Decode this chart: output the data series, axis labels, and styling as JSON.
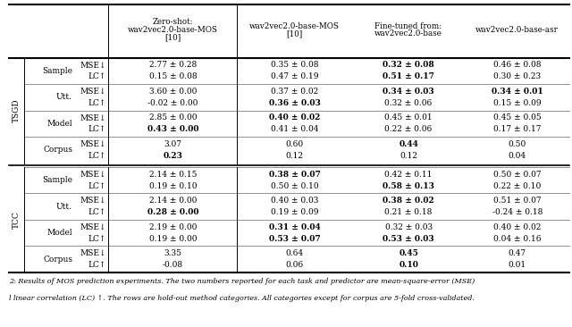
{
  "col_headers": [
    "Zero-shot:\nwav2vec2.0-base-MOS\n[10]",
    "wav2vec2.0-base-MOS\n[10]",
    "Fine-tuned from:\nwav2vec2.0-base",
    "wav2vec2.0-base-asr"
  ],
  "row_groups": [
    {
      "group_label": "TSGD",
      "rows": [
        {
          "category": "Sample",
          "values": [
            [
              "2.77 ± 0.28",
              "0.35 ± 0.08",
              "0.32 ± 0.08",
              "0.46 ± 0.08"
            ],
            [
              "0.15 ± 0.08",
              "0.47 ± 0.19",
              "0.51 ± 0.17",
              "0.30 ± 0.23"
            ]
          ],
          "bold": [
            [
              false,
              false,
              true,
              false
            ],
            [
              false,
              false,
              true,
              false
            ]
          ]
        },
        {
          "category": "Utt.",
          "values": [
            [
              "3.60 ± 0.00",
              "0.37 ± 0.02",
              "0.34 ± 0.03",
              "0.34 ± 0.01"
            ],
            [
              "-0.02 ± 0.00",
              "0.36 ± 0.03",
              "0.32 ± 0.06",
              "0.15 ± 0.09"
            ]
          ],
          "bold": [
            [
              false,
              false,
              true,
              true
            ],
            [
              false,
              true,
              false,
              false
            ]
          ]
        },
        {
          "category": "Model",
          "values": [
            [
              "2.85 ± 0.00",
              "0.40 ± 0.02",
              "0.45 ± 0.01",
              "0.45 ± 0.05"
            ],
            [
              "0.43 ± 0.00",
              "0.41 ± 0.04",
              "0.22 ± 0.06",
              "0.17 ± 0.17"
            ]
          ],
          "bold": [
            [
              false,
              true,
              false,
              false
            ],
            [
              true,
              false,
              false,
              false
            ]
          ]
        },
        {
          "category": "Corpus",
          "values": [
            [
              "3.07",
              "0.60",
              "0.44",
              "0.50"
            ],
            [
              "0.23",
              "0.12",
              "0.12",
              "0.04"
            ]
          ],
          "bold": [
            [
              false,
              false,
              true,
              false
            ],
            [
              true,
              false,
              false,
              false
            ]
          ]
        }
      ]
    },
    {
      "group_label": "TCC",
      "rows": [
        {
          "category": "Sample",
          "values": [
            [
              "2.14 ± 0.15",
              "0.38 ± 0.07",
              "0.42 ± 0.11",
              "0.50 ± 0.07"
            ],
            [
              "0.19 ± 0.10",
              "0.50 ± 0.10",
              "0.58 ± 0.13",
              "0.22 ± 0.10"
            ]
          ],
          "bold": [
            [
              false,
              true,
              false,
              false
            ],
            [
              false,
              false,
              true,
              false
            ]
          ]
        },
        {
          "category": "Utt.",
          "values": [
            [
              "2.14 ± 0.00",
              "0.40 ± 0.03",
              "0.38 ± 0.02",
              "0.51 ± 0.07"
            ],
            [
              "0.28 ± 0.00",
              "0.19 ± 0.09",
              "0.21 ± 0.18",
              "-0.24 ± 0.18"
            ]
          ],
          "bold": [
            [
              false,
              false,
              true,
              false
            ],
            [
              true,
              false,
              false,
              false
            ]
          ]
        },
        {
          "category": "Model",
          "values": [
            [
              "2.19 ± 0.00",
              "0.31 ± 0.04",
              "0.32 ± 0.03",
              "0.40 ± 0.02"
            ],
            [
              "0.19 ± 0.00",
              "0.53 ± 0.07",
              "0.53 ± 0.03",
              "0.04 ± 0.16"
            ]
          ],
          "bold": [
            [
              false,
              true,
              false,
              false
            ],
            [
              false,
              true,
              true,
              false
            ]
          ]
        },
        {
          "category": "Corpus",
          "values": [
            [
              "3.35",
              "0.64",
              "0.45",
              "0.47"
            ],
            [
              "-0.08",
              "0.06",
              "0.10",
              "0.01"
            ]
          ],
          "bold": [
            [
              false,
              false,
              true,
              false
            ],
            [
              false,
              false,
              true,
              false
            ]
          ]
        }
      ]
    }
  ],
  "caption_line1": "2: Results of MOS prediction experiments. The two numbers reported for each task and predictor are mean-square-error (MSE)",
  "caption_line2": "l linear correlation (LC) ↑. The rows are hold-out method categories. All categories except for corpus are 5-fold cross-validated."
}
